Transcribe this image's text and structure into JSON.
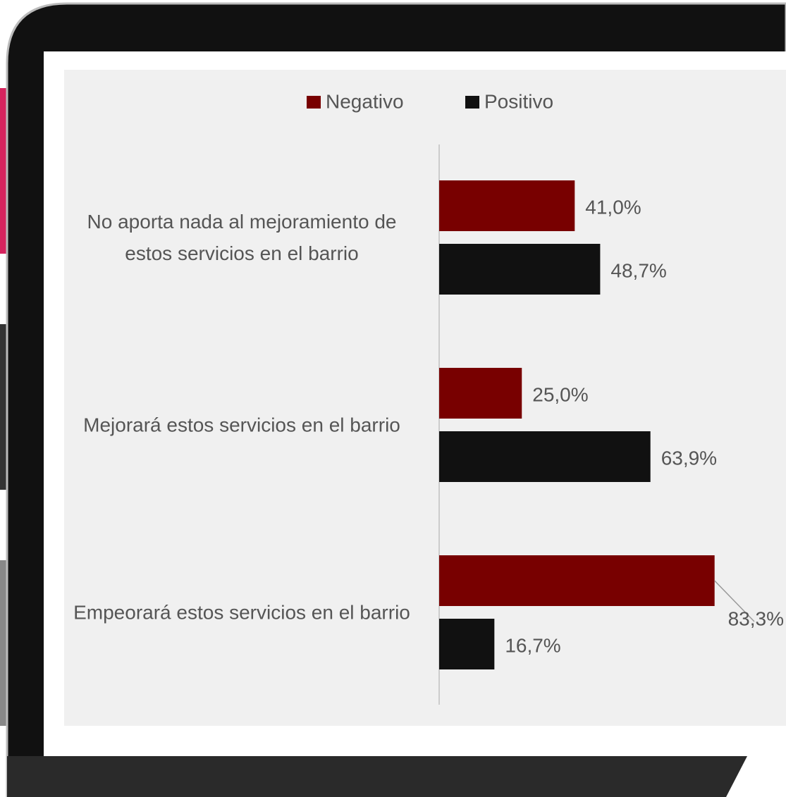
{
  "chart_data": {
    "type": "bar",
    "orientation": "horizontal",
    "categories": [
      "No aporta nada al mejoramiento de estos servicios en el barrio",
      "Mejorará estos servicios en el barrio",
      "Empeorará estos servicios en el barrio"
    ],
    "series": [
      {
        "name": "Negativo",
        "color": "#780000",
        "values": [
          41.0,
          25.0,
          83.3
        ],
        "value_labels": [
          "41,0%",
          "25,0%",
          "83,3%"
        ]
      },
      {
        "name": "Positivo",
        "color": "#111111",
        "values": [
          48.7,
          63.9,
          16.7
        ],
        "value_labels": [
          "48,7%",
          "63,9%",
          "16,7%"
        ]
      }
    ],
    "legend": "top"
  }
}
